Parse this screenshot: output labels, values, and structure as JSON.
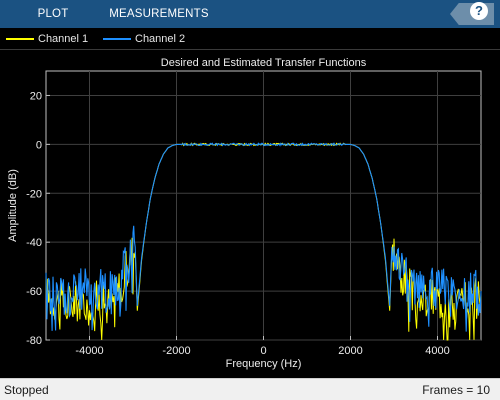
{
  "toolstrip": {
    "tabs": [
      {
        "label": "PLOT"
      },
      {
        "label": "MEASUREMENTS"
      }
    ],
    "help_label": "?"
  },
  "legend": {
    "items": [
      {
        "label": "Channel 1",
        "color": "#ffff00"
      },
      {
        "label": "Channel 2",
        "color": "#1e90ff"
      }
    ]
  },
  "chart_data": {
    "type": "line",
    "title": "Desired and Estimated Transfer Functions",
    "xlabel": "Frequency (Hz)",
    "ylabel": "Amplitude (dB)",
    "xlim": [
      -5000,
      5000
    ],
    "ylim": [
      -80,
      30
    ],
    "xticks": [
      -4000,
      -2000,
      0,
      2000,
      4000
    ],
    "yticks": [
      20,
      0,
      -20,
      -40,
      -60,
      -80
    ],
    "grid": true,
    "legend_position": "top",
    "series": [
      {
        "name": "Channel 1",
        "color": "#ffff00",
        "x": [
          -5000,
          -4500,
          -4000,
          -3500,
          -3100,
          -3000,
          -2950,
          -2900,
          -2800,
          -2700,
          -2600,
          -2500,
          -2400,
          -2300,
          -2200,
          -2100,
          -2000,
          -1900,
          -1800,
          -1500,
          -1000,
          -500,
          0,
          500,
          1000,
          1500,
          1800,
          1900,
          2000,
          2100,
          2200,
          2300,
          2400,
          2500,
          2600,
          2700,
          2800,
          2900,
          2950,
          3000,
          3100,
          3500,
          4000,
          4500,
          5000
        ],
        "y": [
          -62,
          -65,
          -63,
          -66,
          -50,
          -43,
          -44,
          -68,
          -47,
          -33,
          -22,
          -14,
          -8,
          -4,
          -1.5,
          -0.5,
          0,
          0,
          0,
          0,
          0,
          0,
          0,
          0,
          0,
          0,
          0,
          0,
          0,
          -0.5,
          -1.5,
          -4,
          -8,
          -14,
          -22,
          -33,
          -47,
          -68,
          -44,
          -43,
          -50,
          -64,
          -63,
          -65,
          -62
        ]
      },
      {
        "name": "Channel 2",
        "color": "#1e90ff",
        "x": [
          -5000,
          -4500,
          -4000,
          -3500,
          -3100,
          -3000,
          -2950,
          -2900,
          -2800,
          -2700,
          -2600,
          -2500,
          -2400,
          -2300,
          -2200,
          -2100,
          -2000,
          -1900,
          -1800,
          -1500,
          -1000,
          -500,
          0,
          500,
          1000,
          1500,
          1800,
          1900,
          2000,
          2100,
          2200,
          2300,
          2400,
          2500,
          2600,
          2700,
          2800,
          2900,
          2950,
          3000,
          3100,
          3500,
          4000,
          4500,
          5000
        ],
        "y": [
          -60,
          -62,
          -58,
          -61,
          -48,
          -41,
          -42,
          -66,
          -46,
          -33,
          -22,
          -14,
          -8,
          -4,
          -1.5,
          -0.5,
          0,
          0,
          0,
          0,
          0,
          0,
          0,
          0,
          0,
          0,
          0,
          0,
          0,
          -0.5,
          -1.5,
          -4,
          -8,
          -14,
          -22,
          -33,
          -46,
          -66,
          -42,
          -41,
          -48,
          -60,
          -59,
          -61,
          -60
        ]
      }
    ]
  },
  "statusbar": {
    "left": "Stopped",
    "right": "Frames = 10"
  }
}
